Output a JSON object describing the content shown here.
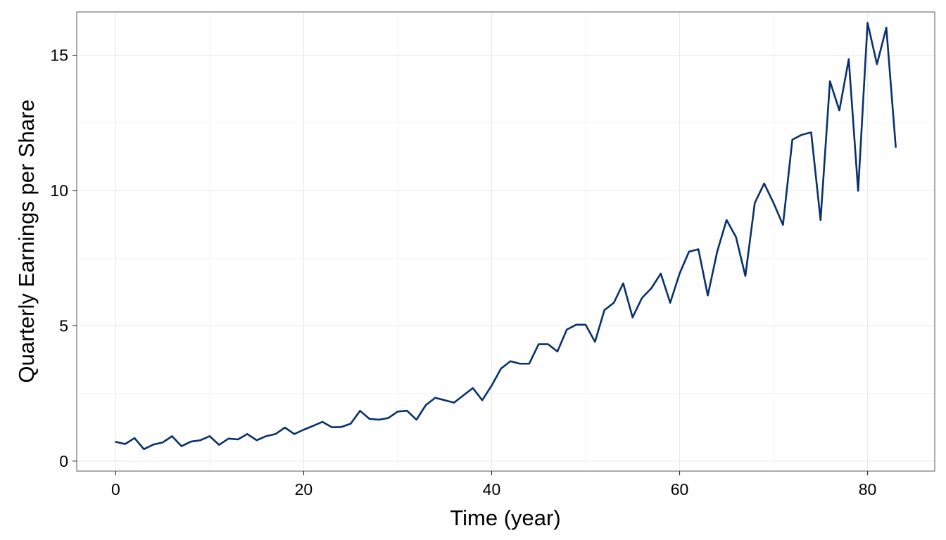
{
  "chart_data": {
    "type": "line",
    "title": "",
    "xlabel": "Time (year)",
    "ylabel": "Quarterly Earnings per Share",
    "xlim": [
      -4.15,
      87.15
    ],
    "ylim": [
      -0.37,
      16.6
    ],
    "x_ticks": [
      0,
      20,
      40,
      60,
      80
    ],
    "y_ticks": [
      0,
      5,
      10,
      15
    ],
    "x_tick_labels": [
      "0",
      "20",
      "40",
      "60",
      "80"
    ],
    "y_tick_labels": [
      "0",
      "5",
      "10",
      "15"
    ],
    "x_minor_ticks": [
      10,
      30,
      50,
      70
    ],
    "y_minor_ticks": [
      2.5,
      7.5,
      12.5
    ],
    "grid": true,
    "line_color": "#08306b",
    "series": [
      {
        "x": [
          0,
          1,
          2,
          3,
          4,
          5,
          6,
          7,
          8,
          9,
          10,
          11,
          12,
          13,
          14,
          15,
          16,
          17,
          18,
          19,
          20,
          21,
          22,
          23,
          24,
          25,
          26,
          27,
          28,
          29,
          30,
          31,
          32,
          33,
          34,
          35,
          36,
          37,
          38,
          39,
          40,
          41,
          42,
          43,
          44,
          45,
          46,
          47,
          48,
          49,
          50,
          51,
          52,
          53,
          54,
          55,
          56,
          57,
          58,
          59,
          60,
          61,
          62,
          63,
          64,
          65,
          66,
          67,
          68,
          69,
          70,
          71,
          72,
          73,
          74,
          75,
          76,
          77,
          78,
          79,
          80,
          81,
          82,
          83
        ],
        "values": [
          0.71,
          0.63,
          0.85,
          0.44,
          0.61,
          0.69,
          0.92,
          0.55,
          0.72,
          0.77,
          0.92,
          0.6,
          0.83,
          0.8,
          1.0,
          0.77,
          0.92,
          1.0,
          1.24,
          1.0,
          1.16,
          1.3,
          1.45,
          1.25,
          1.26,
          1.38,
          1.86,
          1.56,
          1.53,
          1.59,
          1.83,
          1.86,
          1.53,
          2.07,
          2.34,
          2.25,
          2.16,
          2.43,
          2.7,
          2.25,
          2.79,
          3.42,
          3.69,
          3.6,
          3.6,
          4.32,
          4.32,
          4.05,
          4.86,
          5.04,
          5.04,
          4.41,
          5.58,
          5.85,
          6.57,
          5.31,
          6.03,
          6.39,
          6.93,
          5.85,
          6.93,
          7.74,
          7.83,
          6.12,
          7.74,
          8.91,
          8.28,
          6.84,
          9.54,
          10.26,
          9.54,
          8.73,
          11.88,
          12.06,
          12.15,
          8.91,
          14.04,
          12.96,
          14.85,
          9.99,
          16.2,
          14.67,
          16.02,
          11.61
        ]
      }
    ]
  }
}
